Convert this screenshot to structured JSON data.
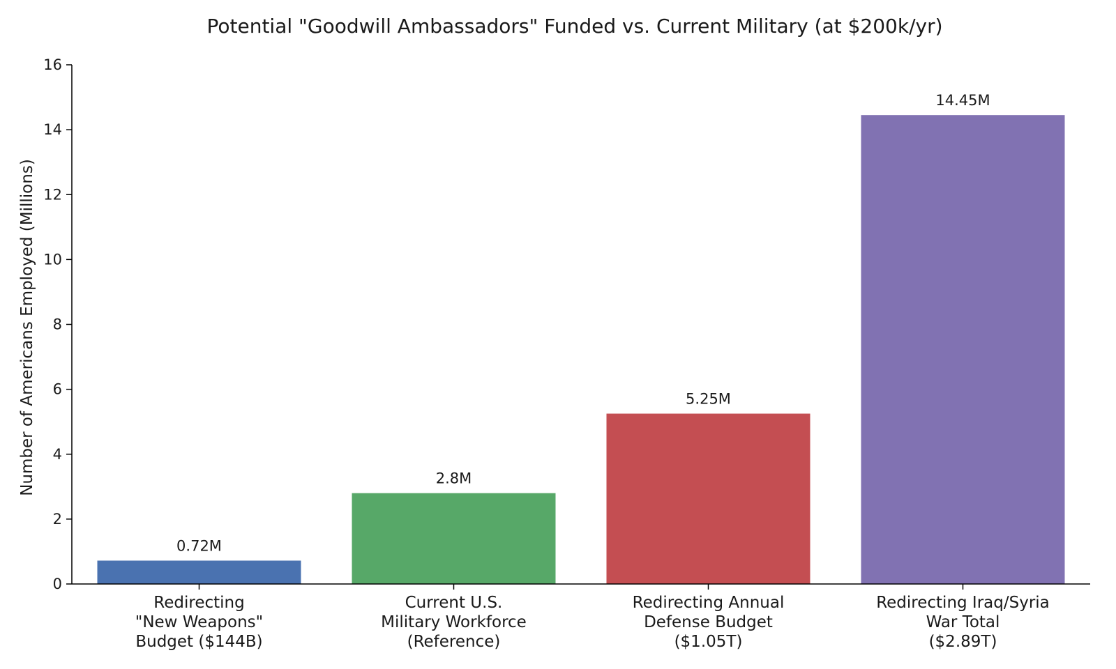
{
  "chart_data": {
    "type": "bar",
    "title": "Potential \"Goodwill Ambassadors\" Funded vs. Current Military (at $200k/yr)",
    "xlabel": "",
    "ylabel": "Number of Americans Employed (Millions)",
    "ylim": [
      0,
      16
    ],
    "yticks": [
      0,
      2,
      4,
      6,
      8,
      10,
      12,
      14,
      16
    ],
    "grid": false,
    "categories": [
      [
        "Redirecting",
        "\"New Weapons\"",
        "Budget ($144B)"
      ],
      [
        "Current U.S.",
        "Military Workforce",
        "(Reference)"
      ],
      [
        "Redirecting Annual",
        "Defense Budget",
        "($1.05T)"
      ],
      [
        "Redirecting Iraq/Syria",
        "War Total",
        "($2.89T)"
      ]
    ],
    "values": [
      0.72,
      2.8,
      5.25,
      14.45
    ],
    "value_labels": [
      "0.72M",
      "2.8M",
      "5.25M",
      "14.45M"
    ],
    "colors": [
      "#4a72b0",
      "#57a868",
      "#c44e52",
      "#8172b2"
    ]
  }
}
